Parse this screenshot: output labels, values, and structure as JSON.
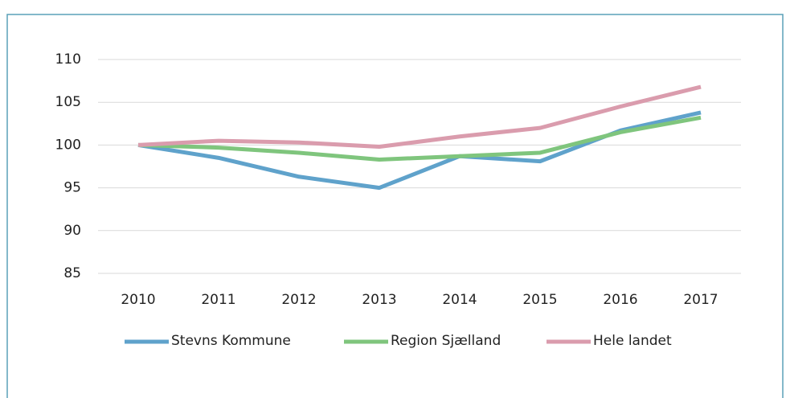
{
  "chart_data": {
    "type": "line",
    "categories": [
      "2010",
      "2011",
      "2012",
      "2013",
      "2014",
      "2015",
      "2016",
      "2017"
    ],
    "series": [
      {
        "name": "Stevns Kommune",
        "color": "#5fa2cb",
        "values": [
          100,
          98.5,
          96.3,
          95.0,
          98.7,
          98.1,
          101.7,
          103.8
        ]
      },
      {
        "name": "Region Sjælland",
        "color": "#7fc57d",
        "values": [
          100,
          99.7,
          99.1,
          98.3,
          98.7,
          99.1,
          101.5,
          103.2
        ]
      },
      {
        "name": "Hele landet",
        "color": "#da9cad",
        "values": [
          100,
          100.5,
          100.3,
          99.8,
          101.0,
          102.0,
          104.5,
          106.8
        ]
      }
    ],
    "ylim": [
      85,
      110
    ],
    "yticks": [
      85,
      90,
      95,
      100,
      105,
      110
    ],
    "grid": true,
    "legend": "bottom"
  }
}
